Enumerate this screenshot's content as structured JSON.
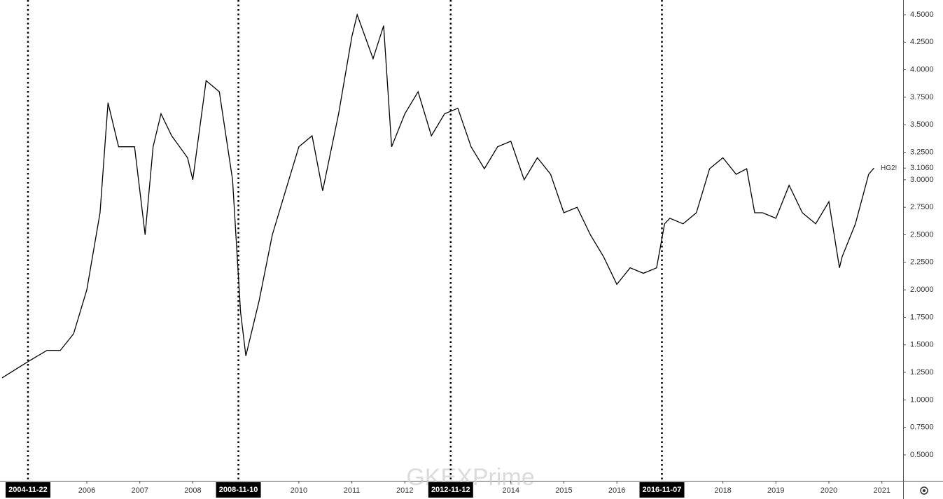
{
  "chart_data": {
    "type": "line",
    "series": [
      {
        "name": "HG2!",
        "color": "#000000",
        "x": [
          2004.4,
          2004.9,
          2005.25,
          2005.5,
          2005.75,
          2006.0,
          2006.25,
          2006.4,
          2006.6,
          2006.9,
          2007.1,
          2007.25,
          2007.4,
          2007.6,
          2007.9,
          2008.0,
          2008.25,
          2008.5,
          2008.75,
          2008.9,
          2009.0,
          2009.25,
          2009.5,
          2009.75,
          2010.0,
          2010.25,
          2010.45,
          2010.75,
          2011.0,
          2011.1,
          2011.4,
          2011.6,
          2011.75,
          2012.0,
          2012.25,
          2012.5,
          2012.75,
          2013.0,
          2013.25,
          2013.5,
          2013.75,
          2014.0,
          2014.25,
          2014.5,
          2014.75,
          2015.0,
          2015.25,
          2015.5,
          2015.75,
          2016.0,
          2016.25,
          2016.5,
          2016.75,
          2016.9,
          2017.0,
          2017.25,
          2017.5,
          2017.75,
          2018.0,
          2018.25,
          2018.45,
          2018.6,
          2018.75,
          2019.0,
          2019.25,
          2019.5,
          2019.75,
          2020.0,
          2020.2,
          2020.25,
          2020.5,
          2020.75,
          2020.85
        ],
        "values": [
          1.2,
          1.35,
          1.45,
          1.45,
          1.6,
          2.0,
          2.7,
          3.7,
          3.3,
          3.3,
          2.5,
          3.3,
          3.6,
          3.4,
          3.2,
          3.0,
          3.9,
          3.8,
          3.0,
          1.8,
          1.4,
          1.9,
          2.5,
          2.9,
          3.3,
          3.4,
          2.9,
          3.6,
          4.3,
          4.5,
          4.1,
          4.4,
          3.3,
          3.6,
          3.8,
          3.4,
          3.6,
          3.65,
          3.3,
          3.1,
          3.3,
          3.35,
          3.0,
          3.2,
          3.05,
          2.7,
          2.75,
          2.5,
          2.3,
          2.05,
          2.2,
          2.15,
          2.2,
          2.6,
          2.65,
          2.6,
          2.7,
          3.1,
          3.2,
          3.05,
          3.1,
          2.7,
          2.7,
          2.65,
          2.95,
          2.7,
          2.6,
          2.8,
          2.2,
          2.3,
          2.6,
          3.05,
          3.106
        ]
      }
    ],
    "last_price": {
      "value": 3.106,
      "label": "3.1060"
    },
    "xlim": [
      2004.362,
      2021.4
    ],
    "xticks": [
      2006,
      2007,
      2008,
      2010,
      2011,
      2012,
      2014,
      2015,
      2016,
      2018,
      2019,
      2020,
      2021
    ],
    "markers": [
      {
        "value": 2004.89,
        "label": "2004-11-22"
      },
      {
        "value": 2008.86,
        "label": "2008-11-10"
      },
      {
        "value": 2012.865,
        "label": "2012-11-12"
      },
      {
        "value": 2016.85,
        "label": "2016-11-07"
      }
    ],
    "ylim": [
      0.2647,
      4.6335
    ],
    "yticks": [
      {
        "value": 0.5,
        "label": "0.5000"
      },
      {
        "value": 0.75,
        "label": "0.7500"
      },
      {
        "value": 1.0,
        "label": "1.0000"
      },
      {
        "value": 1.25,
        "label": "1.2500"
      },
      {
        "value": 1.5,
        "label": "1.5000"
      },
      {
        "value": 1.75,
        "label": "1.7500"
      },
      {
        "value": 2.0,
        "label": "2.0000"
      },
      {
        "value": 2.25,
        "label": "2.2500"
      },
      {
        "value": 2.5,
        "label": "2.5000"
      },
      {
        "value": 2.75,
        "label": "2.7500"
      },
      {
        "value": 3.0,
        "label": "3.0000"
      },
      {
        "value": 3.25,
        "label": "3.2500"
      },
      {
        "value": 3.5,
        "label": "3.5000"
      },
      {
        "value": 3.75,
        "label": "3.7500"
      },
      {
        "value": 4.0,
        "label": "4.0000"
      },
      {
        "value": 4.25,
        "label": "4.2500"
      },
      {
        "value": 4.5,
        "label": "4.5000"
      }
    ],
    "watermark": "GKEXPrime"
  }
}
